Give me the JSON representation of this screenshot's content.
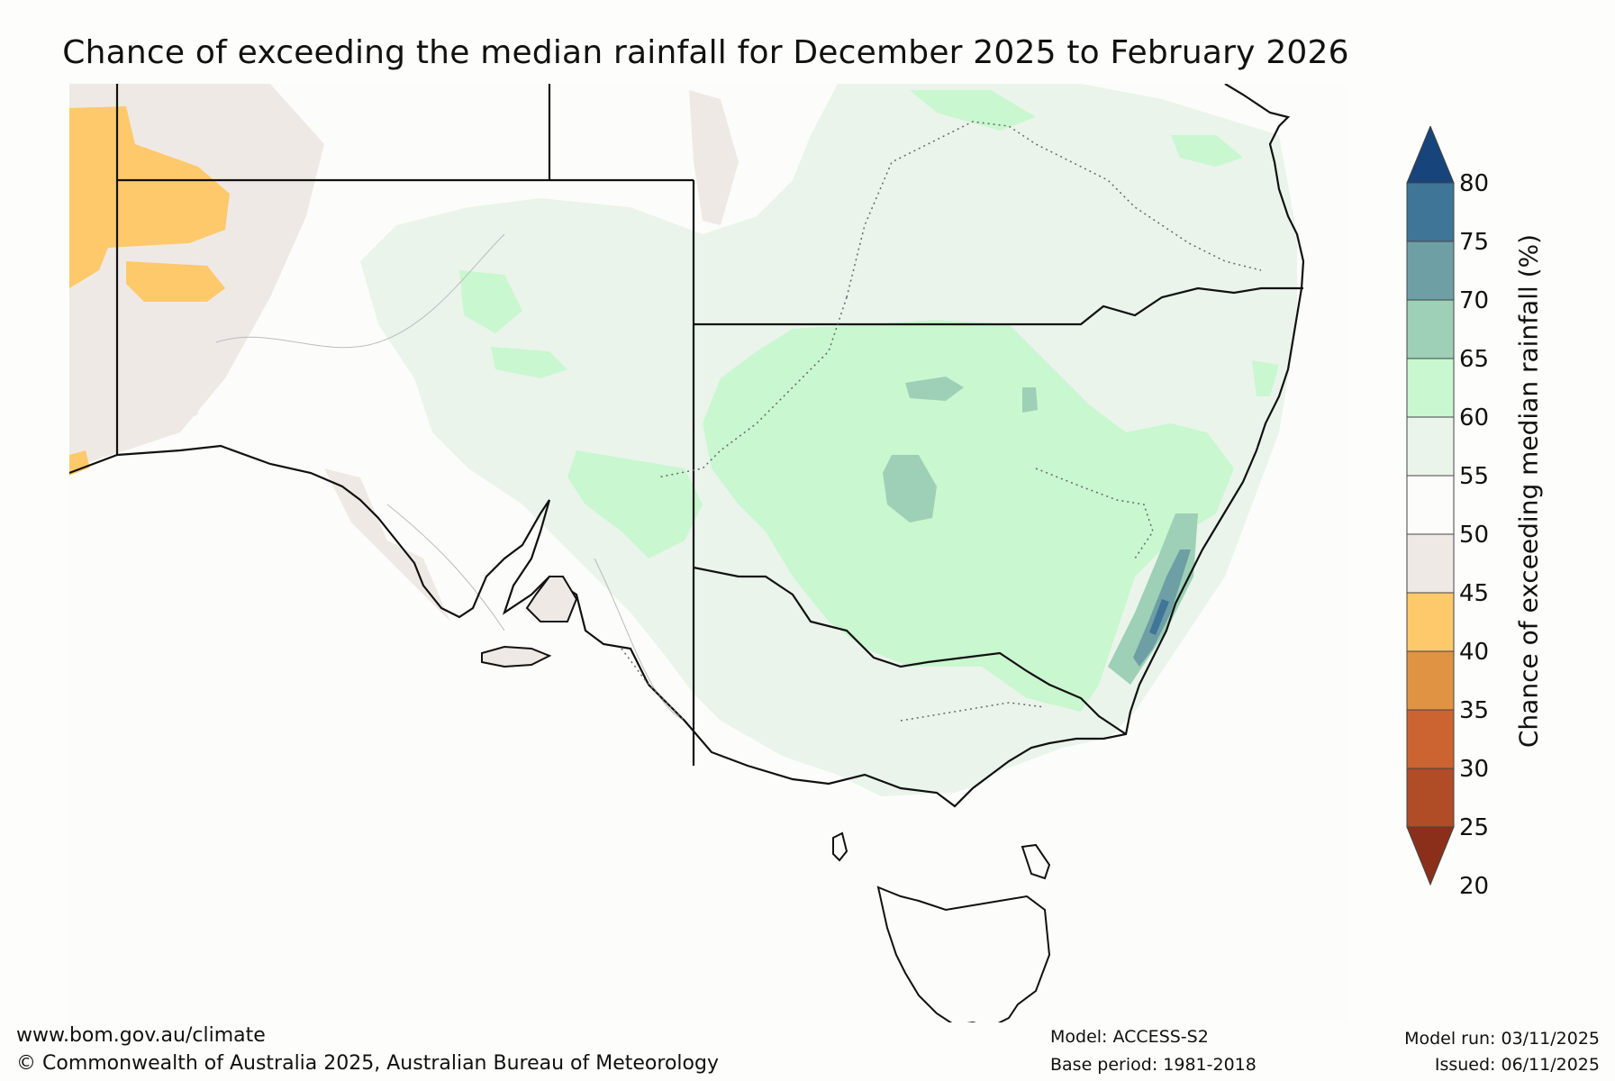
{
  "title": "Chance of exceeding the median rainfall for December 2025 to February 2026",
  "colorbar": {
    "label": "Chance of exceeding median rainfall (%)",
    "ticks": [
      "80",
      "75",
      "70",
      "65",
      "60",
      "55",
      "50",
      "45",
      "40",
      "35",
      "30",
      "25",
      "20"
    ],
    "colors": {
      "above75": "#17447a",
      "70_75": "#3f7597",
      "65_70": "#6e9fa5",
      "60_65": "#9dd0b6",
      "55_60": "#c9f7cf",
      "50_55": "#eaf4eb",
      "45_50": "#fcfdfb",
      "40_45": "#efe9e6",
      "35_40": "#fdc96b",
      "30_35": "#e09443",
      "25_30": "#cc6432",
      "20_25": "#b04c26",
      "below20": "#8c2f1a"
    }
  },
  "footer": {
    "website": "www.bom.gov.au/climate",
    "copyright": "© Commonwealth of Australia 2025, Australian Bureau of Meteorology",
    "model": "Model: ACCESS-S2",
    "base_period": "Base period: 1981-2018",
    "model_run": "Model run: 03/11/2025",
    "issued": "Issued: 06/11/2025"
  }
}
